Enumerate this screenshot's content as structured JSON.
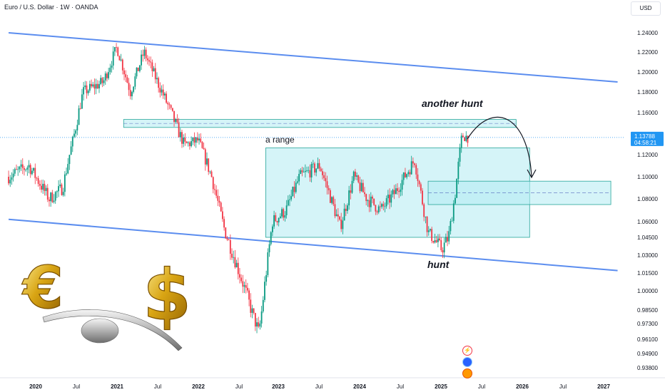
{
  "header": {
    "title": "Euro / U.S. Dollar · 1W · OANDA",
    "currency": "USD"
  },
  "price_label": {
    "value": "1.13788",
    "countdown": "04:58:21",
    "color": "#2196f3"
  },
  "colors": {
    "up": "#089981",
    "down": "#f23645",
    "channel": "#5b8def",
    "zone_fill": "#b2ebf2",
    "zone_stroke": "#26a69a"
  },
  "annotations": {
    "range": "a range",
    "hunt": "hunt",
    "another_hunt": "another hunt"
  },
  "illustration": {
    "euro_symbol": "€",
    "dollar_symbol": "$"
  },
  "chart_data": {
    "type": "candlestick",
    "title": "Euro / U.S. Dollar · 1W · OANDA",
    "ylim": [
      0.936,
      1.249
    ],
    "y_ticks": [
      "1.24000",
      "1.22000",
      "1.20000",
      "1.18000",
      "1.16000",
      "1.14000",
      "1.12000",
      "1.10000",
      "1.08000",
      "1.06000",
      "1.04500",
      "1.03000",
      "1.01500",
      "1.00000",
      "0.98500",
      "0.97300",
      "0.96100",
      "0.94900",
      "0.93800"
    ],
    "x_ticks": [
      "2020",
      "Jul",
      "2021",
      "Jul",
      "2022",
      "Jul",
      "2023",
      "Jul",
      "2024",
      "Jul",
      "2025",
      "Jul",
      "2026",
      "Jul",
      "2027"
    ],
    "year_ticks": [
      "2020",
      "2021",
      "2022",
      "2023",
      "2024",
      "2025",
      "2026",
      "2027"
    ],
    "date_range": [
      "2019-09",
      "2025-05"
    ],
    "path": [
      [
        "2019-09",
        1.1
      ],
      [
        "2019-12",
        1.11
      ],
      [
        "2020-03",
        1.08
      ],
      [
        "2020-05",
        1.09
      ],
      [
        "2020-08",
        1.18
      ],
      [
        "2020-11",
        1.19
      ],
      [
        "2021-01",
        1.225
      ],
      [
        "2021-03",
        1.18
      ],
      [
        "2021-05",
        1.22
      ],
      [
        "2021-08",
        1.175
      ],
      [
        "2021-11",
        1.13
      ],
      [
        "2022-01",
        1.135
      ],
      [
        "2022-03",
        1.1
      ],
      [
        "2022-05",
        1.05
      ],
      [
        "2022-08",
        1.0
      ],
      [
        "2022-10",
        0.965
      ],
      [
        "2022-12",
        1.06
      ],
      [
        "2023-02",
        1.07
      ],
      [
        "2023-04",
        1.1
      ],
      [
        "2023-07",
        1.11
      ],
      [
        "2023-10",
        1.055
      ],
      [
        "2023-12",
        1.1
      ],
      [
        "2024-02",
        1.08
      ],
      [
        "2024-04",
        1.07
      ],
      [
        "2024-06",
        1.085
      ],
      [
        "2024-09",
        1.115
      ],
      [
        "2024-11",
        1.05
      ],
      [
        "2025-01",
        1.035
      ],
      [
        "2025-02",
        1.045
      ],
      [
        "2025-03",
        1.085
      ],
      [
        "2025-04",
        1.14
      ],
      [
        "2025-05",
        1.13788
      ]
    ],
    "channel_upper": [
      [
        "2019-09",
        1.24
      ],
      [
        "2027-03",
        1.19
      ]
    ],
    "channel_lower": [
      [
        "2019-09",
        1.062
      ],
      [
        "2027-03",
        1.017
      ]
    ],
    "zones": [
      {
        "label": "a range",
        "x0": "2022-11",
        "x1": "2026-02",
        "y0": 1.045,
        "y1": 1.127
      },
      {
        "label": "",
        "x0": "2021-02",
        "x1": "2025-12",
        "y0": 1.147,
        "y1": 1.154
      },
      {
        "label": "",
        "x0": "2024-11",
        "x1": "2027-02",
        "y0": 1.075,
        "y1": 1.096
      }
    ],
    "current_price": 1.13788
  }
}
